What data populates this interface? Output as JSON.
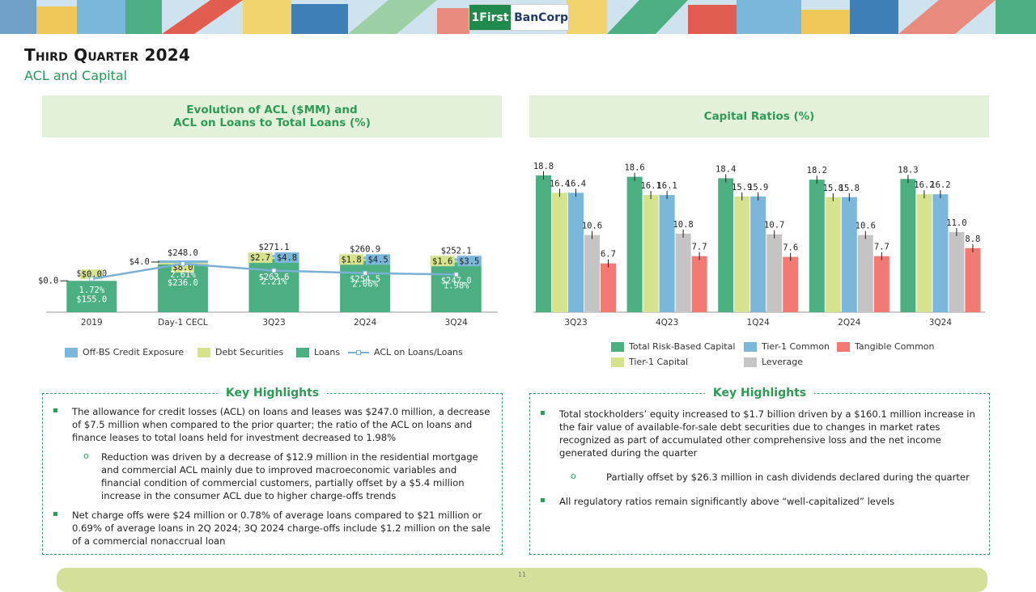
{
  "logo": {
    "mark": "1First",
    "text": "BanCorp"
  },
  "page": {
    "title": "Third Quarter 2024",
    "subtitle": "ACL and Capital",
    "page_number": "11"
  },
  "colors": {
    "green": "#4caf82",
    "light_green": "#d6e28e",
    "blue": "#7bb6db",
    "gray": "#c4c4c4",
    "red": "#f27a73",
    "line": "#7bb0d6"
  },
  "left_panel": {
    "title_line1": "Evolution of ACL ($MM) and",
    "title_line2": "ACL on Loans to Total Loans (%)"
  },
  "right_panel": {
    "title": "Capital Ratios (%)"
  },
  "chart_data": [
    {
      "type": "bar",
      "stacked": true,
      "title": "Evolution of ACL ($MM) and ACL on Loans to Total Loans (%)",
      "categories": [
        "2019",
        "Day-1 CECL",
        "3Q23",
        "2Q24",
        "3Q24"
      ],
      "series": [
        {
          "name": "Loans",
          "values": [
            155.0,
            236.0,
            263.6,
            254.5,
            247.0
          ],
          "labels": [
            "$155.0",
            "$236.0",
            "$263.6",
            "$254.5",
            "$247.0"
          ]
        },
        {
          "name": "Debt Securities",
          "values": [
            0.0,
            8.0,
            2.7,
            1.8,
            1.6
          ],
          "labels": [
            "$0.0",
            "$8.0",
            "$2.7",
            "$1.8",
            "$1.6"
          ]
        },
        {
          "name": "Off-BS Credit Exposure",
          "values": [
            0.0,
            4.0,
            4.8,
            4.5,
            3.5
          ],
          "labels": [
            "$0.0",
            "$4.0",
            "$4.8",
            "$4.5",
            "$3.5"
          ]
        }
      ],
      "totals": [
        "$155.0",
        "$248.0",
        "$271.1",
        "$260.9",
        "$252.1"
      ],
      "line": {
        "name": "ACL on Loans/Loans",
        "values": [
          1.72,
          2.61,
          2.21,
          2.06,
          1.98
        ],
        "labels": [
          "1.72%",
          "2.61%",
          "2.21%",
          "2.06%",
          "1.98%"
        ]
      },
      "legend": [
        "Off-BS Credit Exposure",
        "Debt Securities",
        "Loans",
        "ACL on Loans/Loans"
      ]
    },
    {
      "type": "bar",
      "title": "Capital Ratios (%)",
      "categories": [
        "3Q23",
        "4Q23",
        "1Q24",
        "2Q24",
        "3Q24"
      ],
      "series": [
        {
          "name": "Total Risk-Based Capital",
          "values": [
            18.8,
            18.6,
            18.4,
            18.2,
            18.3
          ]
        },
        {
          "name": "Tier-1 Capital",
          "values": [
            16.4,
            16.1,
            15.9,
            15.8,
            16.2
          ]
        },
        {
          "name": "Tier-1 Common",
          "values": [
            16.4,
            16.1,
            15.9,
            15.8,
            16.2
          ]
        },
        {
          "name": "Leverage",
          "values": [
            10.6,
            10.8,
            10.7,
            10.6,
            11.0
          ]
        },
        {
          "name": "Tangible Common",
          "values": [
            6.7,
            7.7,
            7.6,
            7.7,
            8.8
          ]
        }
      ],
      "legend": [
        "Total Risk-Based Capital",
        "Tier-1 Common",
        "Tangible Common",
        "Tier-1 Capital",
        "Leverage"
      ]
    }
  ],
  "highlights_left": {
    "title": "Key Highlights",
    "b1": "The allowance for credit losses (ACL) on loans and leases was $247.0 million, a decrease of $7.5 million when compared to the prior quarter; the ratio of the ACL on loans and finance leases to total loans held for investment decreased to 1.98%",
    "b1_sub": "Reduction was driven by a decrease of $12.9 million in the residential mortgage and commercial ACL mainly due to improved macroeconomic variables and financial condition of commercial customers, partially offset by a $5.4 million increase in the consumer ACL due to higher charge-offs trends",
    "b2": "Net charge offs were $24 million or 0.78% of average loans compared to $21 million or 0.69% of average loans in 2Q 2024; 3Q 2024 charge-offs include $1.2 million on the sale of a commercial nonaccrual loan"
  },
  "highlights_right": {
    "title": "Key Highlights",
    "b1": "Total stockholders’ equity increased to $1.7 billion driven by a $160.1 million increase in the fair value of available-for-sale debt securities due to changes in market rates recognized as part of accumulated other comprehensive loss and the net income generated during the quarter",
    "b1_sub": "Partially offset by $26.3 million in cash dividends declared during the quarter",
    "b2": "All regulatory ratios remain significantly above “well-capitalized” levels"
  }
}
